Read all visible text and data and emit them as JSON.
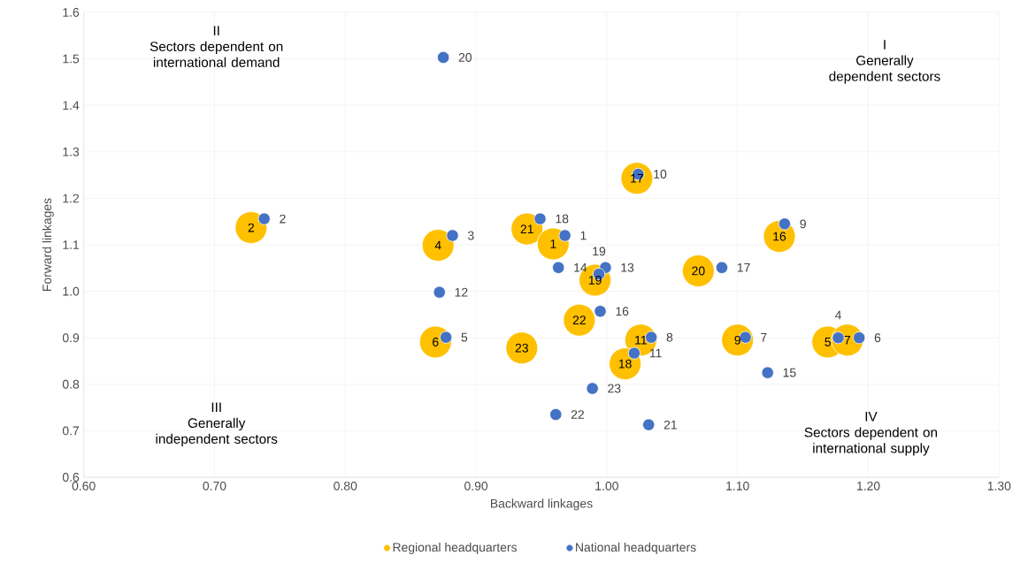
{
  "chart_data": {
    "type": "scatter",
    "xlabel": "Backward linkages",
    "ylabel": "Forward linkages",
    "xlim": [
      0.6,
      1.3
    ],
    "ylim": [
      0.6,
      1.6
    ],
    "xticks": [
      {
        "value": 0.6,
        "label": "0.60"
      },
      {
        "value": 0.7,
        "label": "0.70"
      },
      {
        "value": 0.8,
        "label": "0.80"
      },
      {
        "value": 0.9,
        "label": "0.90"
      },
      {
        "value": 1.0,
        "label": "1.00"
      },
      {
        "value": 1.1,
        "label": "1.10"
      },
      {
        "value": 1.2,
        "label": "1.20"
      },
      {
        "value": 1.3,
        "label": "1.30"
      }
    ],
    "yticks": [
      {
        "value": 0.6,
        "label": "0.6"
      },
      {
        "value": 0.7,
        "label": "0.7"
      },
      {
        "value": 0.8,
        "label": "0.8"
      },
      {
        "value": 0.9,
        "label": "0.9"
      },
      {
        "value": 1.0,
        "label": "1.0"
      },
      {
        "value": 1.1,
        "label": "1.1"
      },
      {
        "value": 1.2,
        "label": "1.2"
      },
      {
        "value": 1.3,
        "label": "1.3"
      },
      {
        "value": 1.4,
        "label": "1.4"
      },
      {
        "value": 1.5,
        "label": "1.5"
      },
      {
        "value": 1.6,
        "label": "1.6"
      }
    ],
    "grid": true,
    "legend": "bottom",
    "marker": "circle",
    "annotations": [
      "II",
      "Sectors dependent on international demand",
      "I",
      "Generally dependent sectors",
      "III",
      "Generally independent sectors",
      "IV",
      "Sectors dependent on international supply",
      {
        "text": "2",
        "x": 0.728,
        "y": 1.137
      },
      {
        "text": "4",
        "x": 0.871,
        "y": 1.099
      },
      {
        "text": "21",
        "x": 0.939,
        "y": 1.134
      },
      {
        "text": "1",
        "x": 0.959,
        "y": 1.102
      },
      {
        "text": "6",
        "x": 0.869,
        "y": 0.891
      },
      {
        "text": "23",
        "x": 0.935,
        "y": 0.878
      },
      {
        "text": "22",
        "x": 0.979,
        "y": 0.938
      },
      {
        "text": "19",
        "x": 0.991,
        "y": 1.024
      },
      {
        "text": "17",
        "x": 1.023,
        "y": 1.243
      },
      {
        "text": "20",
        "x": 1.07,
        "y": 1.044
      },
      {
        "text": "11",
        "x": 1.026,
        "y": 0.895
      },
      {
        "text": "18",
        "x": 1.014,
        "y": 0.844
      },
      {
        "text": "9",
        "x": 1.1,
        "y": 0.895
      },
      {
        "text": "16",
        "x": 1.132,
        "y": 1.118
      },
      {
        "text": "5",
        "x": 1.169,
        "y": 0.891
      },
      {
        "text": "7",
        "x": 1.184,
        "y": 0.895
      },
      {
        "text": "1",
        "x": 0.968,
        "y": 1.12
      },
      {
        "text": "2",
        "x": 0.738,
        "y": 1.156
      },
      {
        "text": "3",
        "x": 0.882,
        "y": 1.12
      },
      {
        "text": "4",
        "x": 1.177,
        "y": 0.9
      },
      {
        "text": "5",
        "x": 0.877,
        "y": 0.901
      },
      {
        "text": "6",
        "x": 1.193,
        "y": 0.9
      },
      {
        "text": "7",
        "x": 1.106,
        "y": 0.901
      },
      {
        "text": "8",
        "x": 1.034,
        "y": 0.901
      },
      {
        "text": "9",
        "x": 1.136,
        "y": 1.145
      },
      {
        "text": "10",
        "x": 1.024,
        "y": 1.252
      },
      {
        "text": "11",
        "x": 1.021,
        "y": 0.867
      },
      {
        "text": "12",
        "x": 0.872,
        "y": 0.998
      },
      {
        "text": "13",
        "x": 0.999,
        "y": 1.051
      },
      {
        "text": "14",
        "x": 0.963,
        "y": 1.051
      },
      {
        "text": "15",
        "x": 1.123,
        "y": 0.825
      },
      {
        "text": "16",
        "x": 0.995,
        "y": 0.957
      },
      {
        "text": "17",
        "x": 1.088,
        "y": 1.051
      },
      {
        "text": "18",
        "x": 0.949,
        "y": 1.156
      },
      {
        "text": "19",
        "x": 0.994,
        "y": 1.037
      },
      {
        "text": "20",
        "x": 0.875,
        "y": 1.503
      },
      {
        "text": "21",
        "x": 1.032,
        "y": 0.713
      },
      {
        "text": "22",
        "x": 0.961,
        "y": 0.735
      },
      {
        "text": "23",
        "x": 0.989,
        "y": 0.791
      }
    ],
    "series": [
      {
        "name": "Regional headquarters",
        "color": "#ffc000",
        "x": [
          0.728,
          0.871,
          0.939,
          0.959,
          0.869,
          0.935,
          0.979,
          0.991,
          1.023,
          1.07,
          1.026,
          1.014,
          1.1,
          1.132,
          1.169,
          1.184
        ],
        "values": [
          1.137,
          1.099,
          1.134,
          1.102,
          0.891,
          0.878,
          0.938,
          1.024,
          1.243,
          1.044,
          0.895,
          0.844,
          0.895,
          1.118,
          0.891,
          0.895
        ]
      },
      {
        "name": "National headquarters",
        "color": "#4472c4",
        "x": [
          0.968,
          0.738,
          0.882,
          1.177,
          0.877,
          1.193,
          1.106,
          1.034,
          1.136,
          1.024,
          1.021,
          0.872,
          0.999,
          0.963,
          1.123,
          0.995,
          1.088,
          0.949,
          0.994,
          0.875,
          1.032,
          0.961,
          0.989
        ],
        "values": [
          1.12,
          1.156,
          1.12,
          0.9,
          0.901,
          0.9,
          0.901,
          0.901,
          1.145,
          1.252,
          0.867,
          0.998,
          1.051,
          1.051,
          0.825,
          0.957,
          1.051,
          1.156,
          1.037,
          1.503,
          0.713,
          0.735,
          0.791
        ]
      }
    ]
  }
}
